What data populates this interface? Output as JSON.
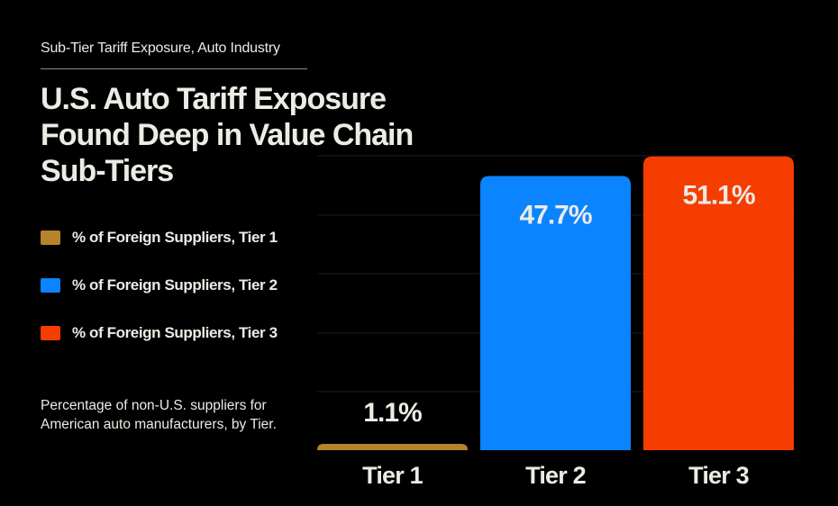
{
  "header": {
    "kicker": "Sub-Tier Tariff Exposure, Auto Industry",
    "title": "U.S. Auto Tariff Exposure Found Deep in Value Chain Sub-Tiers"
  },
  "legend": [
    {
      "label": "% of Foreign Suppliers, Tier 1",
      "color": "#b5832b"
    },
    {
      "label": "% of Foreign Suppliers, Tier 2",
      "color": "#0a84ff"
    },
    {
      "label": "% of Foreign Suppliers, Tier 3",
      "color": "#f53d00"
    }
  ],
  "note": "Percentage of non-U.S. suppliers for American auto manufacturers, by Tier.",
  "chart_data": {
    "type": "bar",
    "categories": [
      "Tier 1",
      "Tier 2",
      "Tier 3"
    ],
    "values": [
      1.1,
      47.7,
      51.1
    ],
    "data_labels": [
      "1.1%",
      "47.7%",
      "51.1%"
    ],
    "colors": [
      "#b5832b",
      "#0a84ff",
      "#f53d00"
    ],
    "ylim": [
      0,
      52
    ],
    "grid": true,
    "legend_position": "left"
  }
}
